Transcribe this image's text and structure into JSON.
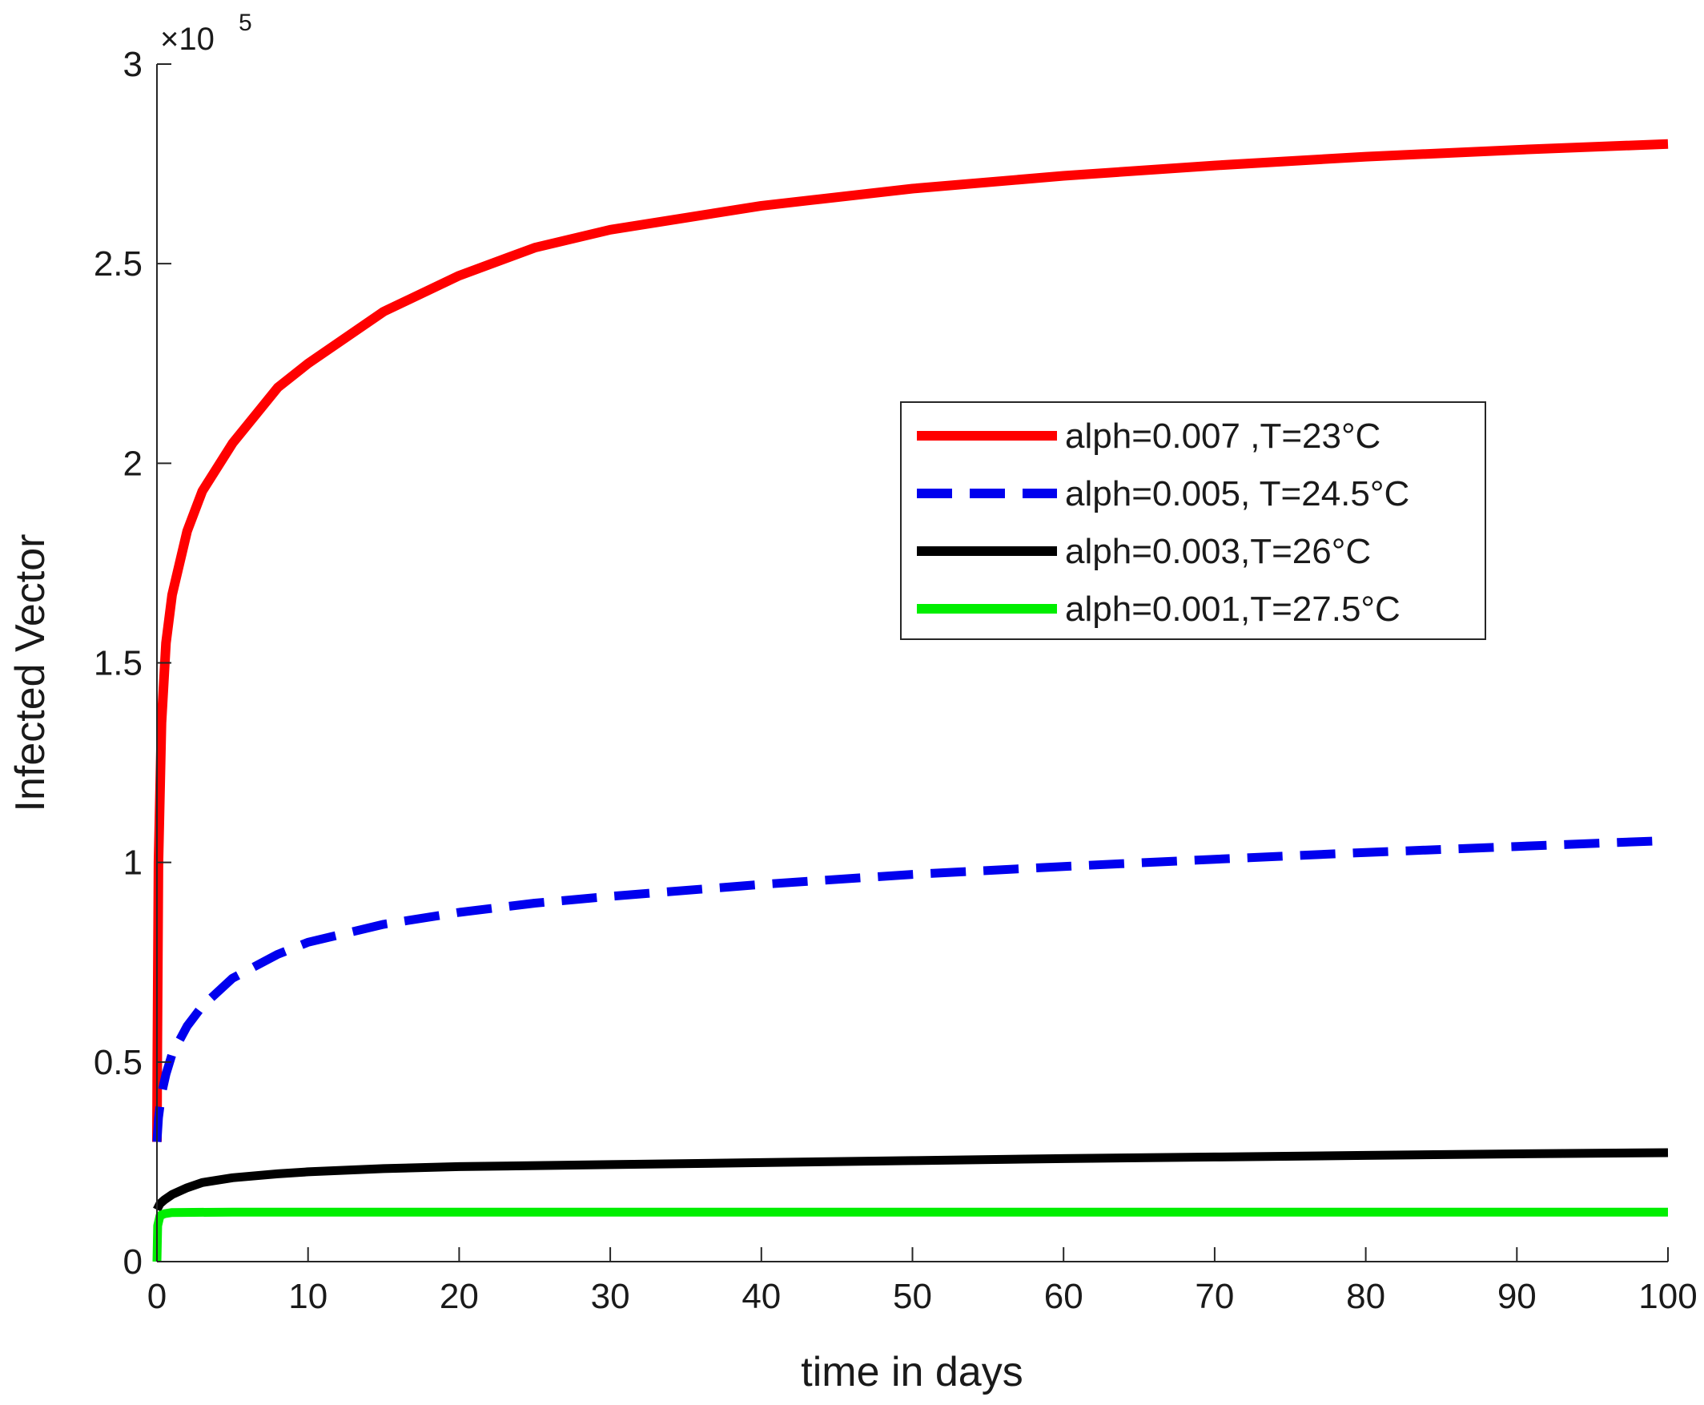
{
  "chart_data": {
    "type": "line",
    "title": "",
    "xlabel": "time in days",
    "ylabel": "Infected Vector",
    "xlim": [
      0,
      100
    ],
    "ylim": [
      0,
      300000
    ],
    "x_ticks": [
      0,
      10,
      20,
      30,
      40,
      50,
      60,
      70,
      80,
      90,
      100
    ],
    "x_tick_labels": [
      "0",
      "10",
      "20",
      "30",
      "40",
      "50",
      "60",
      "70",
      "80",
      "90",
      "100"
    ],
    "y_ticks": [
      0,
      50000,
      100000,
      150000,
      200000,
      250000,
      300000
    ],
    "y_tick_labels": [
      "0",
      "0.5",
      "1",
      "1.5",
      "2",
      "2.5",
      "3"
    ],
    "y_exponent_label": {
      "base": "×10",
      "power": "5"
    },
    "grid": false,
    "legend_position": "top-right",
    "series": [
      {
        "name": "alph=0.007 ,T=23°C",
        "color": "#ff0000",
        "style": "solid",
        "x": [
          0,
          0.02,
          0.1,
          0.3,
          0.6,
          1,
          2,
          3,
          5,
          8,
          10,
          15,
          20,
          25,
          30,
          40,
          50,
          60,
          70,
          80,
          90,
          100
        ],
        "y": [
          30000,
          50000,
          100000,
          135000,
          155000,
          167000,
          183000,
          193000,
          205000,
          219000,
          225000,
          238000,
          247000,
          254000,
          258500,
          264500,
          268800,
          272000,
          274600,
          276800,
          278500,
          280000
        ]
      },
      {
        "name": "alph=0.005, T=24.5°C",
        "color": "#0000ee",
        "style": "dashed",
        "x": [
          0,
          0.1,
          0.3,
          0.6,
          1,
          2,
          3,
          5,
          8,
          10,
          15,
          20,
          25,
          30,
          40,
          50,
          60,
          70,
          80,
          90,
          100
        ],
        "y": [
          30000,
          36000,
          42000,
          47000,
          52000,
          59000,
          64000,
          71000,
          77000,
          80000,
          84500,
          87500,
          89800,
          91500,
          94500,
          97000,
          99000,
          100800,
          102500,
          104000,
          105500
        ]
      },
      {
        "name": "alph=0.003,T=26°C",
        "color": "#000000",
        "style": "solid",
        "x": [
          0,
          0.2,
          0.5,
          1,
          2,
          3,
          5,
          8,
          10,
          15,
          20,
          30,
          40,
          50,
          60,
          70,
          80,
          90,
          100
        ],
        "y": [
          13000,
          14500,
          15500,
          16800,
          18500,
          19800,
          21000,
          22000,
          22500,
          23300,
          23800,
          24300,
          24800,
          25300,
          25800,
          26200,
          26600,
          27000,
          27300
        ]
      },
      {
        "name": "alph=0.001,T=27.5°C",
        "color": "#00ee00",
        "style": "solid",
        "x": [
          0,
          0.05,
          0.2,
          0.5,
          1,
          5,
          10,
          20,
          30,
          40,
          50,
          60,
          70,
          80,
          90,
          100
        ],
        "y": [
          0,
          9000,
          11500,
          12000,
          12300,
          12400,
          12400,
          12400,
          12400,
          12400,
          12400,
          12400,
          12400,
          12400,
          12400,
          12400
        ]
      }
    ]
  }
}
